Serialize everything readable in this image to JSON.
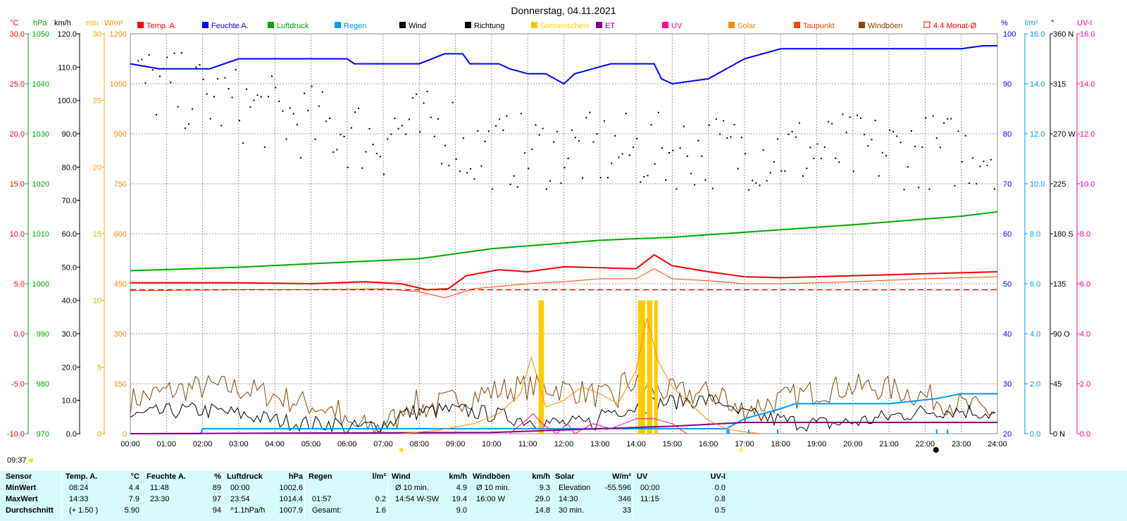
{
  "title": "Donnerstag, 04.11.2021",
  "time_marker": "09:37",
  "units": {
    "temp": "°C",
    "hpa": "hPa",
    "kmh": "km/h",
    "min": "min",
    "wm2": "W/m²",
    "pct": "%",
    "lm2": "l/m²",
    "deg": "°",
    "uvi": "UV-I"
  },
  "axes": {
    "temp": [
      "30.0",
      "25.0",
      "20.0",
      "15.0",
      "10.0",
      "5.0",
      "0.0",
      "-5.0",
      "-10.0"
    ],
    "hpa": [
      "1050",
      "1040",
      "1030",
      "1020",
      "1010",
      "1000",
      "990",
      "980",
      "970"
    ],
    "kmh": [
      "120.0",
      "110.0",
      "100.0",
      "90.0",
      "80.0",
      "70.0",
      "60.0",
      "50.0",
      "40.0",
      "30.0",
      "20.0",
      "10.0",
      "0.0"
    ],
    "min": [
      "30",
      "25",
      "20",
      "15",
      "10",
      "5",
      "0"
    ],
    "wm2": [
      "1200",
      "1050",
      "900",
      "750",
      "600",
      "450",
      "300",
      "150",
      "0"
    ],
    "pct": [
      "100",
      "90",
      "80",
      "70",
      "60",
      "50",
      "40",
      "30",
      "20"
    ],
    "lm2": [
      "16.0",
      "14.0",
      "12.0",
      "10.0",
      "8.0",
      "6.0",
      "4.0",
      "2.0",
      "0.0"
    ],
    "deg": [
      "360 N",
      "315",
      "270 W",
      "225",
      "180 S",
      "135",
      "90 O",
      "45",
      "0 N"
    ],
    "uvi": [
      "16.0",
      "14.0",
      "12.0",
      "10.0",
      "8.0",
      "6.0",
      "4.0",
      "2.0",
      "0.0"
    ],
    "hours": [
      "00:00",
      "01:00",
      "02:00",
      "03:00",
      "04:00",
      "05:00",
      "06:00",
      "07:00",
      "08:00",
      "09:00",
      "10:00",
      "11:00",
      "12:00",
      "13:00",
      "14:00",
      "15:00",
      "16:00",
      "17:00",
      "18:00",
      "19:00",
      "20:00",
      "21:00",
      "22:00",
      "23:00",
      "24:00"
    ]
  },
  "legend": [
    {
      "label": "Temp. A.",
      "color": "#ff0000",
      "style": "box"
    },
    {
      "label": "Feuchte A.",
      "color": "#0000ff",
      "style": "box"
    },
    {
      "label": "Luftdruck",
      "color": "#00aa00",
      "style": "box"
    },
    {
      "label": "Regen",
      "color": "#0099ff",
      "style": "box"
    },
    {
      "label": "Wind",
      "color": "#000000",
      "style": "box"
    },
    {
      "label": "Richtung",
      "color": "#000000",
      "style": "box"
    },
    {
      "label": "Sonnenschein",
      "color": "#ffcc00",
      "style": "box"
    },
    {
      "label": "ET",
      "color": "#880088",
      "style": "box"
    },
    {
      "label": "UV",
      "color": "#ff0099",
      "style": "box"
    },
    {
      "label": "Solar",
      "color": "#ff8800",
      "style": "box"
    },
    {
      "label": "Taupunkt",
      "color": "#ff4400",
      "style": "box"
    },
    {
      "label": "Windböen",
      "color": "#884400",
      "style": "box"
    },
    {
      "label": "4.4 Monat-Ø",
      "color": "#ff0000",
      "style": "outline"
    }
  ],
  "colors": {
    "temp": "#ff0000",
    "humidity": "#0000ff",
    "pressure": "#00aa00",
    "rain": "#0099ff",
    "wind": "#000000",
    "gust": "#884400",
    "sun": "#ffcc00",
    "et": "#880088",
    "uv": "#ff0099",
    "solar": "#ff8800",
    "dew": "#ff4400",
    "min_axis": "#ffaa00",
    "uvi_axis": "#ff0099",
    "grid": "#999999"
  },
  "chart_data": {
    "type": "line",
    "title": "Donnerstag, 04.11.2021",
    "x_unit": "hours",
    "xlim": [
      0,
      24
    ],
    "monthly_avg_temp": 4.4,
    "series": [
      {
        "name": "Temp. A.",
        "axis": "temp",
        "ylim": [
          -10,
          30
        ],
        "points": [
          [
            0,
            5.1
          ],
          [
            3,
            5.1
          ],
          [
            5,
            5.0
          ],
          [
            6.5,
            5.2
          ],
          [
            7.5,
            5.0
          ],
          [
            8.2,
            4.4
          ],
          [
            8.8,
            4.5
          ],
          [
            9.3,
            5.8
          ],
          [
            10.2,
            6.4
          ],
          [
            11,
            6.2
          ],
          [
            12,
            6.7
          ],
          [
            13,
            6.6
          ],
          [
            14,
            6.5
          ],
          [
            14.5,
            7.9
          ],
          [
            15,
            6.8
          ],
          [
            16,
            6.2
          ],
          [
            17,
            5.7
          ],
          [
            18,
            5.6
          ],
          [
            20,
            5.8
          ],
          [
            22,
            6.0
          ],
          [
            24,
            6.2
          ]
        ]
      },
      {
        "name": "Taupunkt",
        "axis": "temp",
        "ylim": [
          -10,
          30
        ],
        "points": [
          [
            0,
            4.3
          ],
          [
            3,
            4.4
          ],
          [
            5,
            4.4
          ],
          [
            7,
            4.5
          ],
          [
            8,
            4.2
          ],
          [
            8.7,
            3.6
          ],
          [
            9.5,
            4.5
          ],
          [
            11,
            5.0
          ],
          [
            12,
            5.2
          ],
          [
            13,
            5.5
          ],
          [
            14,
            5.5
          ],
          [
            14.5,
            6.5
          ],
          [
            15,
            5.5
          ],
          [
            16,
            5.3
          ],
          [
            17,
            5.0
          ],
          [
            18,
            5.0
          ],
          [
            20,
            5.2
          ],
          [
            22,
            5.5
          ],
          [
            24,
            5.7
          ]
        ]
      },
      {
        "name": "Feuchte A.",
        "axis": "pct",
        "ylim": [
          20,
          100
        ],
        "points": [
          [
            0,
            94
          ],
          [
            0.8,
            93
          ],
          [
            2.2,
            93
          ],
          [
            3,
            95
          ],
          [
            6,
            95
          ],
          [
            6.2,
            94
          ],
          [
            8,
            94
          ],
          [
            8.7,
            96
          ],
          [
            9.2,
            96
          ],
          [
            9.4,
            94
          ],
          [
            10.2,
            94
          ],
          [
            10.5,
            93
          ],
          [
            11,
            92
          ],
          [
            11.5,
            92
          ],
          [
            12,
            90
          ],
          [
            12.3,
            92
          ],
          [
            12.8,
            93
          ],
          [
            13.3,
            94
          ],
          [
            14.5,
            94
          ],
          [
            14.7,
            91
          ],
          [
            15,
            90
          ],
          [
            16,
            91
          ],
          [
            17,
            95
          ],
          [
            18,
            97
          ],
          [
            23,
            97
          ],
          [
            23.6,
            97.6
          ],
          [
            24,
            97.6
          ]
        ]
      },
      {
        "name": "Luftdruck",
        "axis": "hpa",
        "ylim": [
          970,
          1050
        ],
        "points": [
          [
            0,
            1002.6
          ],
          [
            3,
            1003.3
          ],
          [
            5,
            1004.0
          ],
          [
            8,
            1005.0
          ],
          [
            10,
            1007.0
          ],
          [
            13,
            1008.7
          ],
          [
            15,
            1009.3
          ],
          [
            17,
            1010.3
          ],
          [
            20,
            1011.8
          ],
          [
            23,
            1013.5
          ],
          [
            24,
            1014.4
          ]
        ]
      },
      {
        "name": "Regen",
        "axis": "lm2",
        "ylim": [
          0,
          16
        ],
        "points": [
          [
            0,
            0
          ],
          [
            1.95,
            0
          ],
          [
            2.0,
            0.2
          ],
          [
            14.5,
            0.2
          ],
          [
            16.5,
            0.2
          ],
          [
            17,
            0.6
          ],
          [
            18,
            1.0
          ],
          [
            18.4,
            1.2
          ],
          [
            21,
            1.2
          ],
          [
            22.3,
            1.4
          ],
          [
            23,
            1.6
          ],
          [
            24,
            1.6
          ]
        ]
      },
      {
        "name": "ET",
        "axis": "lm2",
        "ylim": [
          0,
          16
        ],
        "points": [
          [
            0,
            0
          ],
          [
            10,
            0.05
          ],
          [
            13,
            0.2
          ],
          [
            15,
            0.3
          ],
          [
            17,
            0.45
          ],
          [
            20,
            0.45
          ],
          [
            24,
            0.45
          ]
        ]
      },
      {
        "name": "Solar",
        "axis": "wm2",
        "ylim": [
          0,
          1200
        ],
        "points": [
          [
            7.5,
            0
          ],
          [
            8.5,
            10
          ],
          [
            9.5,
            30
          ],
          [
            10.2,
            60
          ],
          [
            10.8,
            120
          ],
          [
            11.1,
            230
          ],
          [
            11.5,
            80
          ],
          [
            12,
            100
          ],
          [
            12.5,
            140
          ],
          [
            13,
            120
          ],
          [
            13.5,
            90
          ],
          [
            14,
            190
          ],
          [
            14.3,
            346
          ],
          [
            14.6,
            220
          ],
          [
            15,
            140
          ],
          [
            15.5,
            90
          ],
          [
            16,
            40
          ],
          [
            16.5,
            15
          ],
          [
            17,
            5
          ],
          [
            17.5,
            0
          ]
        ]
      },
      {
        "name": "UV",
        "axis": "uvi",
        "ylim": [
          0,
          16
        ],
        "points": [
          [
            10.5,
            0
          ],
          [
            11.0,
            0.6
          ],
          [
            11.15,
            0.8
          ],
          [
            11.4,
            0.4
          ],
          [
            11.8,
            0
          ],
          [
            12.1,
            0.4
          ],
          [
            12.3,
            0
          ],
          [
            12.8,
            0.4
          ],
          [
            13.3,
            0.2
          ],
          [
            14,
            0.6
          ],
          [
            14.5,
            0.6
          ],
          [
            15,
            0.4
          ],
          [
            15.4,
            0
          ]
        ]
      }
    ],
    "sunshine": [
      [
        11.3,
        11.45
      ],
      [
        14.05,
        14.25
      ],
      [
        14.3,
        14.45
      ],
      [
        14.5,
        14.6
      ]
    ],
    "wind_min_kmh": 4.9,
    "wind_max_kmh": 19.4,
    "gust_max_kmh": 29.0,
    "direction_note": "scatter of wind direction in degrees (0-360)"
  },
  "stats": {
    "columns": [
      {
        "h": "Sensor",
        "rows": [
          "MinWert",
          "MaxWert",
          "Durchschnitt"
        ]
      },
      {
        "h": "Temp. A.",
        "u": "°C",
        "rows": [
          [
            "08:24",
            "4.4"
          ],
          [
            "14:33",
            "7.9"
          ],
          [
            "(+ 1.50 )",
            "5.90"
          ]
        ]
      },
      {
        "h": "Feuchte A.",
        "u": "%",
        "rows": [
          [
            "11:48",
            "89"
          ],
          [
            "23:30",
            "97"
          ],
          [
            "",
            "94"
          ]
        ]
      },
      {
        "h": "Luftdruck",
        "u": "hPa",
        "rows": [
          [
            "00:00",
            "1002.6"
          ],
          [
            "23:54",
            "1014.4"
          ],
          [
            "^1.1hPa/h",
            "1007.9"
          ]
        ]
      },
      {
        "h": "Regen",
        "u": "l/m²",
        "rows": [
          [
            "",
            ""
          ],
          [
            "01:57",
            "0.2"
          ],
          [
            "Gesamt:",
            "1.6"
          ]
        ]
      },
      {
        "h": "Wind",
        "u": "km/h",
        "rows": [
          [
            "Ø 10 min.",
            "4.9"
          ],
          [
            "14:54  W-SW",
            "19.4"
          ],
          [
            "",
            "9.0"
          ]
        ]
      },
      {
        "h": "Windböen",
        "u": "km/h",
        "rows": [
          [
            "Ø 10 min.",
            "9.3"
          ],
          [
            "16:00  W",
            "29.0"
          ],
          [
            "",
            "14.8"
          ]
        ]
      },
      {
        "h": "Solar",
        "u": "W/m²",
        "rows": [
          [
            "Elevation",
            "-55.596"
          ],
          [
            "14:30",
            "346"
          ],
          [
            "30 min.",
            "33"
          ]
        ]
      },
      {
        "h": "UV",
        "u": "UV-I",
        "rows": [
          [
            "00:00",
            "0.0"
          ],
          [
            "11:15",
            "0.8"
          ],
          [
            "",
            "0.5"
          ]
        ]
      }
    ]
  }
}
